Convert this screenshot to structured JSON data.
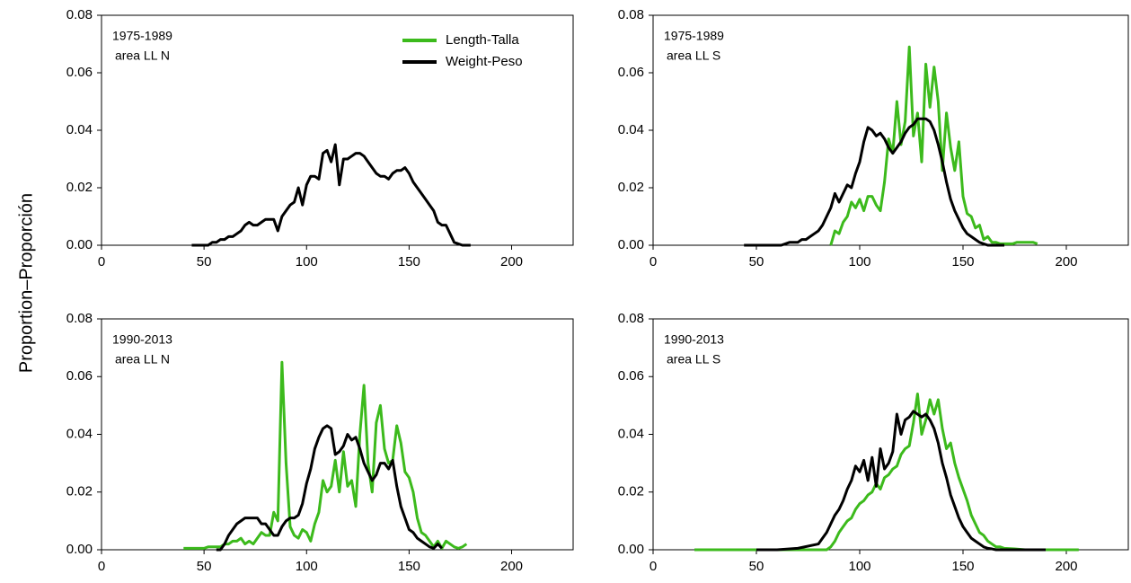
{
  "ylabel": "Proportion–Proporción",
  "chart_data": [
    {
      "type": "line",
      "annotations": [
        "1975-1989",
        "area LL N"
      ],
      "legend": "upper right",
      "xlim": [
        0,
        230
      ],
      "ylim": [
        0,
        0.08
      ],
      "xticks": [
        0,
        50,
        100,
        150,
        200
      ],
      "yticks": [
        {
          "value": 0,
          "label": "0.00"
        },
        {
          "value": 0.02,
          "label": "0.02"
        },
        {
          "value": 0.04,
          "label": "0.04"
        },
        {
          "value": 0.06,
          "label": "0.06"
        },
        {
          "value": 0.08,
          "label": "0.08"
        }
      ],
      "x": [
        44,
        46,
        48,
        50,
        52,
        54,
        56,
        58,
        60,
        62,
        64,
        66,
        68,
        70,
        72,
        74,
        76,
        78,
        80,
        82,
        84,
        86,
        88,
        90,
        92,
        94,
        96,
        98,
        100,
        102,
        104,
        106,
        108,
        110,
        112,
        114,
        116,
        118,
        120,
        122,
        124,
        126,
        128,
        130,
        132,
        134,
        136,
        138,
        140,
        142,
        144,
        146,
        148,
        150,
        152,
        154,
        156,
        158,
        160,
        162,
        164,
        166,
        168,
        170,
        172,
        174,
        176,
        178,
        180
      ],
      "series": [
        {
          "name": "Length-Talla",
          "color": "#3cba1c",
          "values": [
            null,
            null,
            null,
            null,
            null,
            null,
            null,
            null,
            null,
            null,
            null,
            null,
            null,
            null,
            null,
            null,
            null,
            null,
            null,
            null,
            null,
            null,
            null,
            null,
            null,
            null,
            null,
            null,
            null,
            null,
            null,
            null,
            null,
            null,
            null,
            null,
            null,
            null,
            null,
            null,
            null,
            null,
            null,
            null,
            null,
            null,
            null,
            null,
            null,
            null,
            null,
            null,
            null,
            null,
            null,
            null,
            null,
            null,
            null,
            null,
            null,
            null,
            null,
            null,
            null,
            null,
            null,
            null,
            null
          ]
        },
        {
          "name": "Weight-Peso",
          "color": "#000000",
          "values": [
            0,
            0,
            0,
            0,
            0,
            0.001,
            0.001,
            0.002,
            0.002,
            0.003,
            0.003,
            0.004,
            0.005,
            0.007,
            0.008,
            0.007,
            0.007,
            0.008,
            0.009,
            0.009,
            0.009,
            0.005,
            0.01,
            0.012,
            0.014,
            0.015,
            0.02,
            0.014,
            0.021,
            0.024,
            0.024,
            0.023,
            0.032,
            0.033,
            0.029,
            0.035,
            0.021,
            0.03,
            0.03,
            0.031,
            0.032,
            0.032,
            0.031,
            0.029,
            0.027,
            0.025,
            0.024,
            0.024,
            0.023,
            0.025,
            0.026,
            0.026,
            0.027,
            0.025,
            0.022,
            0.02,
            0.018,
            0.016,
            0.014,
            0.012,
            0.008,
            0.007,
            0.007,
            0.004,
            0.001,
            0.0005,
            0,
            0,
            0
          ]
        }
      ]
    },
    {
      "type": "line",
      "annotations": [
        "1975-1989",
        "area LL S"
      ],
      "xlim": [
        0,
        230
      ],
      "ylim": [
        0,
        0.08
      ],
      "xticks": [
        0,
        50,
        100,
        150,
        200
      ],
      "yticks": [
        {
          "value": 0,
          "label": "0.00"
        },
        {
          "value": 0.02,
          "label": "0.02"
        },
        {
          "value": 0.04,
          "label": "0.04"
        },
        {
          "value": 0.06,
          "label": "0.06"
        },
        {
          "value": 0.08,
          "label": "0.08"
        }
      ],
      "x": [
        44,
        46,
        48,
        50,
        52,
        54,
        56,
        58,
        60,
        62,
        64,
        66,
        68,
        70,
        72,
        74,
        76,
        78,
        80,
        82,
        84,
        86,
        88,
        90,
        92,
        94,
        96,
        98,
        100,
        102,
        104,
        106,
        108,
        110,
        112,
        114,
        116,
        118,
        120,
        122,
        124,
        126,
        128,
        130,
        132,
        134,
        136,
        138,
        140,
        142,
        144,
        146,
        148,
        150,
        152,
        154,
        156,
        158,
        160,
        162,
        164,
        166,
        168,
        170,
        172,
        174,
        176,
        178,
        180,
        182,
        184,
        186
      ],
      "series": [
        {
          "color": "#3cba1c",
          "values": [
            null,
            null,
            null,
            null,
            null,
            null,
            null,
            null,
            null,
            null,
            null,
            null,
            null,
            null,
            null,
            null,
            null,
            null,
            null,
            null,
            null,
            0,
            0.005,
            0.004,
            0.008,
            0.01,
            0.015,
            0.013,
            0.016,
            0.012,
            0.017,
            0.017,
            0.014,
            0.012,
            0.022,
            0.037,
            0.032,
            0.05,
            0.035,
            0.043,
            0.069,
            0.038,
            0.046,
            0.029,
            0.063,
            0.048,
            0.062,
            0.05,
            0.026,
            0.046,
            0.034,
            0.026,
            0.036,
            0.017,
            0.011,
            0.01,
            0.006,
            0.007,
            0.002,
            0.003,
            0.001,
            0.001,
            0.0005,
            0.0005,
            0.0005,
            0.0005,
            0.001,
            0.001,
            0.001,
            0.001,
            0.001,
            0.0005
          ]
        },
        {
          "color": "#000000",
          "values": [
            0,
            0,
            0,
            0,
            0,
            0,
            0,
            0,
            0,
            0,
            0.0005,
            0.001,
            0.001,
            0.001,
            0.002,
            0.002,
            0.003,
            0.004,
            0.005,
            0.007,
            0.01,
            0.013,
            0.018,
            0.015,
            0.018,
            0.021,
            0.02,
            0.025,
            0.029,
            0.036,
            0.041,
            0.04,
            0.038,
            0.039,
            0.037,
            0.034,
            0.032,
            0.034,
            0.036,
            0.039,
            0.041,
            0.042,
            0.044,
            0.044,
            0.044,
            0.043,
            0.04,
            0.035,
            0.029,
            0.022,
            0.016,
            0.012,
            0.009,
            0.006,
            0.004,
            0.003,
            0.002,
            0.001,
            0.0005,
            0,
            0,
            0,
            0,
            0,
            null,
            null,
            null,
            null,
            null,
            null,
            null,
            null
          ]
        }
      ]
    },
    {
      "type": "line",
      "annotations": [
        "1990-2013",
        "area LL N"
      ],
      "xlim": [
        0,
        230
      ],
      "ylim": [
        0,
        0.08
      ],
      "xticks": [
        0,
        50,
        100,
        150,
        200
      ],
      "yticks": [
        {
          "value": 0,
          "label": "0.00"
        },
        {
          "value": 0.02,
          "label": "0.02"
        },
        {
          "value": 0.04,
          "label": "0.04"
        },
        {
          "value": 0.06,
          "label": "0.06"
        },
        {
          "value": 0.08,
          "label": "0.08"
        }
      ],
      "x": [
        40,
        42,
        44,
        46,
        48,
        50,
        52,
        54,
        56,
        58,
        60,
        62,
        64,
        66,
        68,
        70,
        72,
        74,
        76,
        78,
        80,
        82,
        84,
        86,
        88,
        90,
        92,
        94,
        96,
        98,
        100,
        102,
        104,
        106,
        108,
        110,
        112,
        114,
        116,
        118,
        120,
        122,
        124,
        126,
        128,
        130,
        132,
        134,
        136,
        138,
        140,
        142,
        144,
        146,
        148,
        150,
        152,
        154,
        156,
        158,
        160,
        162,
        164,
        166,
        168,
        170,
        172,
        174,
        176,
        178,
        180
      ],
      "series": [
        {
          "color": "#3cba1c",
          "values": [
            0.0005,
            0.0005,
            0.0005,
            0.0005,
            0.0005,
            0.0005,
            0.001,
            0.001,
            0.001,
            0.001,
            0.002,
            0.002,
            0.003,
            0.003,
            0.004,
            0.002,
            0.003,
            0.002,
            0.004,
            0.006,
            0.005,
            0.005,
            0.013,
            0.01,
            0.065,
            0.03,
            0.008,
            0.005,
            0.004,
            0.007,
            0.006,
            0.003,
            0.009,
            0.013,
            0.024,
            0.02,
            0.022,
            0.031,
            0.02,
            0.034,
            0.022,
            0.024,
            0.015,
            0.04,
            0.057,
            0.03,
            0.02,
            0.044,
            0.05,
            0.035,
            0.03,
            0.031,
            0.043,
            0.037,
            0.027,
            0.025,
            0.02,
            0.011,
            0.006,
            0.005,
            0.003,
            0.001,
            0.003,
            0.0005,
            0.003,
            0.002,
            0.001,
            0.0005,
            0.001,
            0.002,
            null
          ]
        },
        {
          "color": "#000000",
          "values": [
            null,
            null,
            null,
            null,
            null,
            null,
            null,
            null,
            0,
            0,
            0.002,
            0.005,
            0.007,
            0.009,
            0.01,
            0.011,
            0.011,
            0.011,
            0.011,
            0.009,
            0.009,
            0.007,
            0.005,
            0.005,
            0.008,
            0.01,
            0.011,
            0.011,
            0.012,
            0.016,
            0.023,
            0.028,
            0.035,
            0.039,
            0.042,
            0.043,
            0.042,
            0.033,
            0.034,
            0.036,
            0.04,
            0.038,
            0.039,
            0.035,
            0.03,
            0.027,
            0.024,
            0.026,
            0.03,
            0.03,
            0.028,
            0.031,
            0.022,
            0.015,
            0.011,
            0.007,
            0.006,
            0.004,
            0.003,
            0.002,
            0.001,
            0.0005,
            0.002,
            0.0005,
            null,
            null,
            null,
            null,
            null,
            null,
            null
          ]
        }
      ]
    },
    {
      "type": "line",
      "annotations": [
        "1990-2013",
        "area LL S"
      ],
      "xlim": [
        0,
        230
      ],
      "ylim": [
        0,
        0.08
      ],
      "xticks": [
        0,
        50,
        100,
        150,
        200
      ],
      "yticks": [
        {
          "value": 0,
          "label": "0.00"
        },
        {
          "value": 0.02,
          "label": "0.02"
        },
        {
          "value": 0.04,
          "label": "0.04"
        },
        {
          "value": 0.06,
          "label": "0.06"
        },
        {
          "value": 0.08,
          "label": "0.08"
        }
      ],
      "x": [
        20,
        30,
        40,
        50,
        60,
        70,
        80,
        82,
        84,
        86,
        88,
        90,
        92,
        94,
        96,
        98,
        100,
        102,
        104,
        106,
        108,
        110,
        112,
        114,
        116,
        118,
        120,
        122,
        124,
        126,
        128,
        130,
        132,
        134,
        136,
        138,
        140,
        142,
        144,
        146,
        148,
        150,
        152,
        154,
        156,
        158,
        160,
        162,
        164,
        166,
        168,
        170,
        175,
        180,
        190,
        200,
        206
      ],
      "series": [
        {
          "color": "#3cba1c",
          "values": [
            0,
            0,
            0,
            0,
            0,
            0,
            0,
            0,
            0,
            0.001,
            0.003,
            0.006,
            0.008,
            0.01,
            0.011,
            0.014,
            0.016,
            0.017,
            0.019,
            0.02,
            0.023,
            0.021,
            0.025,
            0.026,
            0.028,
            0.029,
            0.033,
            0.035,
            0.036,
            0.044,
            0.054,
            0.04,
            0.045,
            0.052,
            0.047,
            0.052,
            0.042,
            0.035,
            0.037,
            0.03,
            0.025,
            0.021,
            0.017,
            0.012,
            0.009,
            0.006,
            0.005,
            0.003,
            0.002,
            0.001,
            0.001,
            0.0005,
            0.0003,
            0,
            0,
            0,
            0
          ]
        },
        {
          "color": "#000000",
          "values": [
            null,
            null,
            null,
            0,
            0,
            0.0005,
            0.002,
            0.004,
            0.006,
            0.009,
            0.012,
            0.014,
            0.017,
            0.021,
            0.024,
            0.029,
            0.027,
            0.031,
            0.024,
            0.032,
            0.022,
            0.035,
            0.028,
            0.03,
            0.034,
            0.047,
            0.04,
            0.045,
            0.046,
            0.048,
            0.047,
            0.046,
            0.047,
            0.045,
            0.042,
            0.037,
            0.03,
            0.025,
            0.019,
            0.015,
            0.011,
            0.008,
            0.006,
            0.004,
            0.003,
            0.002,
            0.001,
            0.0005,
            0.0003,
            0,
            0,
            0,
            0,
            0,
            0,
            null,
            null
          ]
        }
      ]
    }
  ]
}
